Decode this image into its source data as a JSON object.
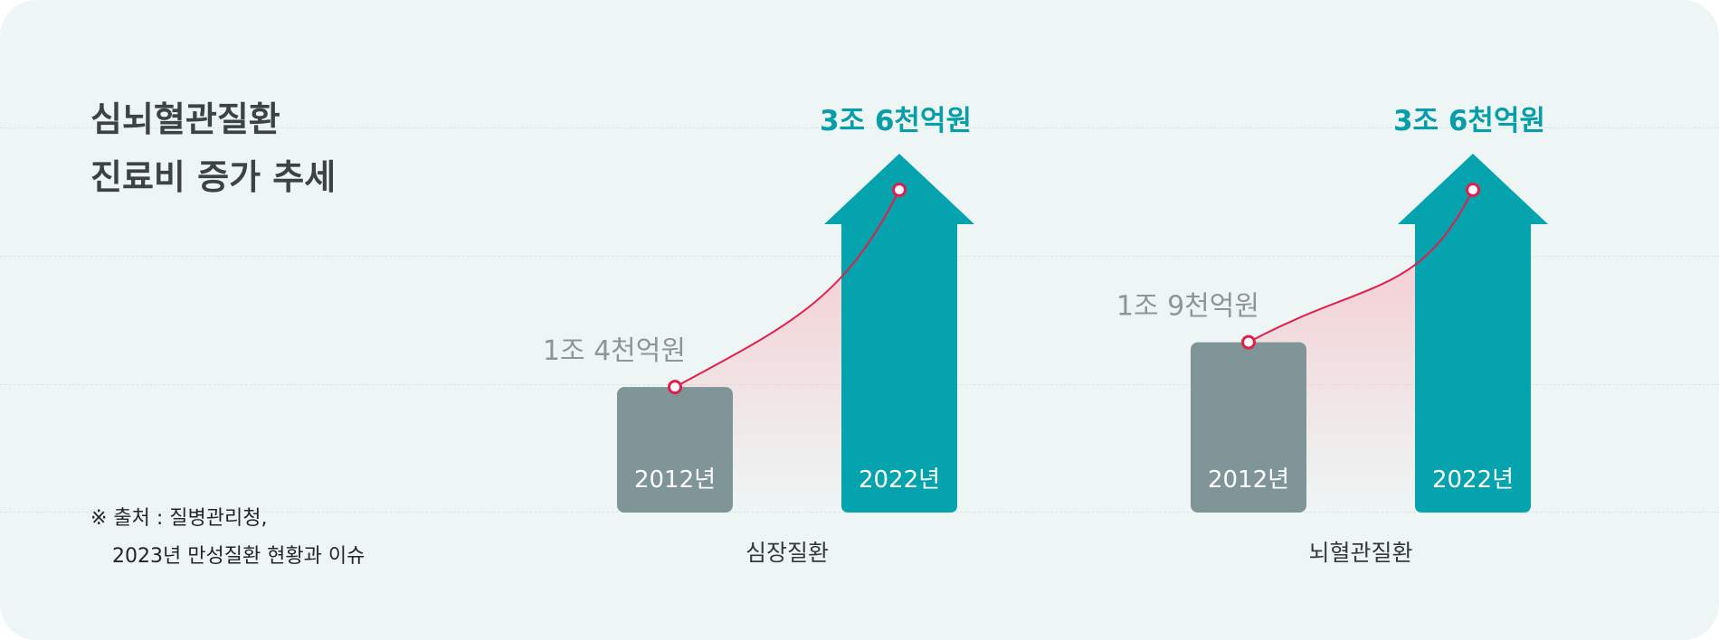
{
  "title": {
    "line1": "심뇌혈관질환",
    "line2": "진료비 증가 추세"
  },
  "source": {
    "line1": "※ 출처 : 질병관리청,",
    "line2": "2023년 만성질환 현황과 이슈"
  },
  "colors": {
    "background": "#eef6f5",
    "bar_2012": "#7f9597",
    "bar_2022": "#04a3ad",
    "trend_line": "#e0204c",
    "trend_fill": "#f6c3c9",
    "value_2012": "#8a9698",
    "value_2022": "#079ea9"
  },
  "chart_data": {
    "type": "bar",
    "title": "심뇌혈관질환 진료비 증가 추세",
    "categories": [
      "심장질환",
      "뇌혈관질환"
    ],
    "series": [
      {
        "name": "2012년",
        "values": [
          1.4,
          1.9
        ]
      },
      {
        "name": "2022년",
        "values": [
          3.6,
          3.6
        ]
      }
    ],
    "value_unit": "조 원",
    "value_labels": {
      "2012": [
        "1조 4천억원",
        "1조 9천억원"
      ],
      "2022": [
        "3조 6천억원",
        "3조 6천억원"
      ]
    },
    "bar_labels": [
      "2012년",
      "2022년"
    ],
    "ylim": [
      0,
      3.6
    ],
    "grid": true,
    "legend": "none"
  }
}
